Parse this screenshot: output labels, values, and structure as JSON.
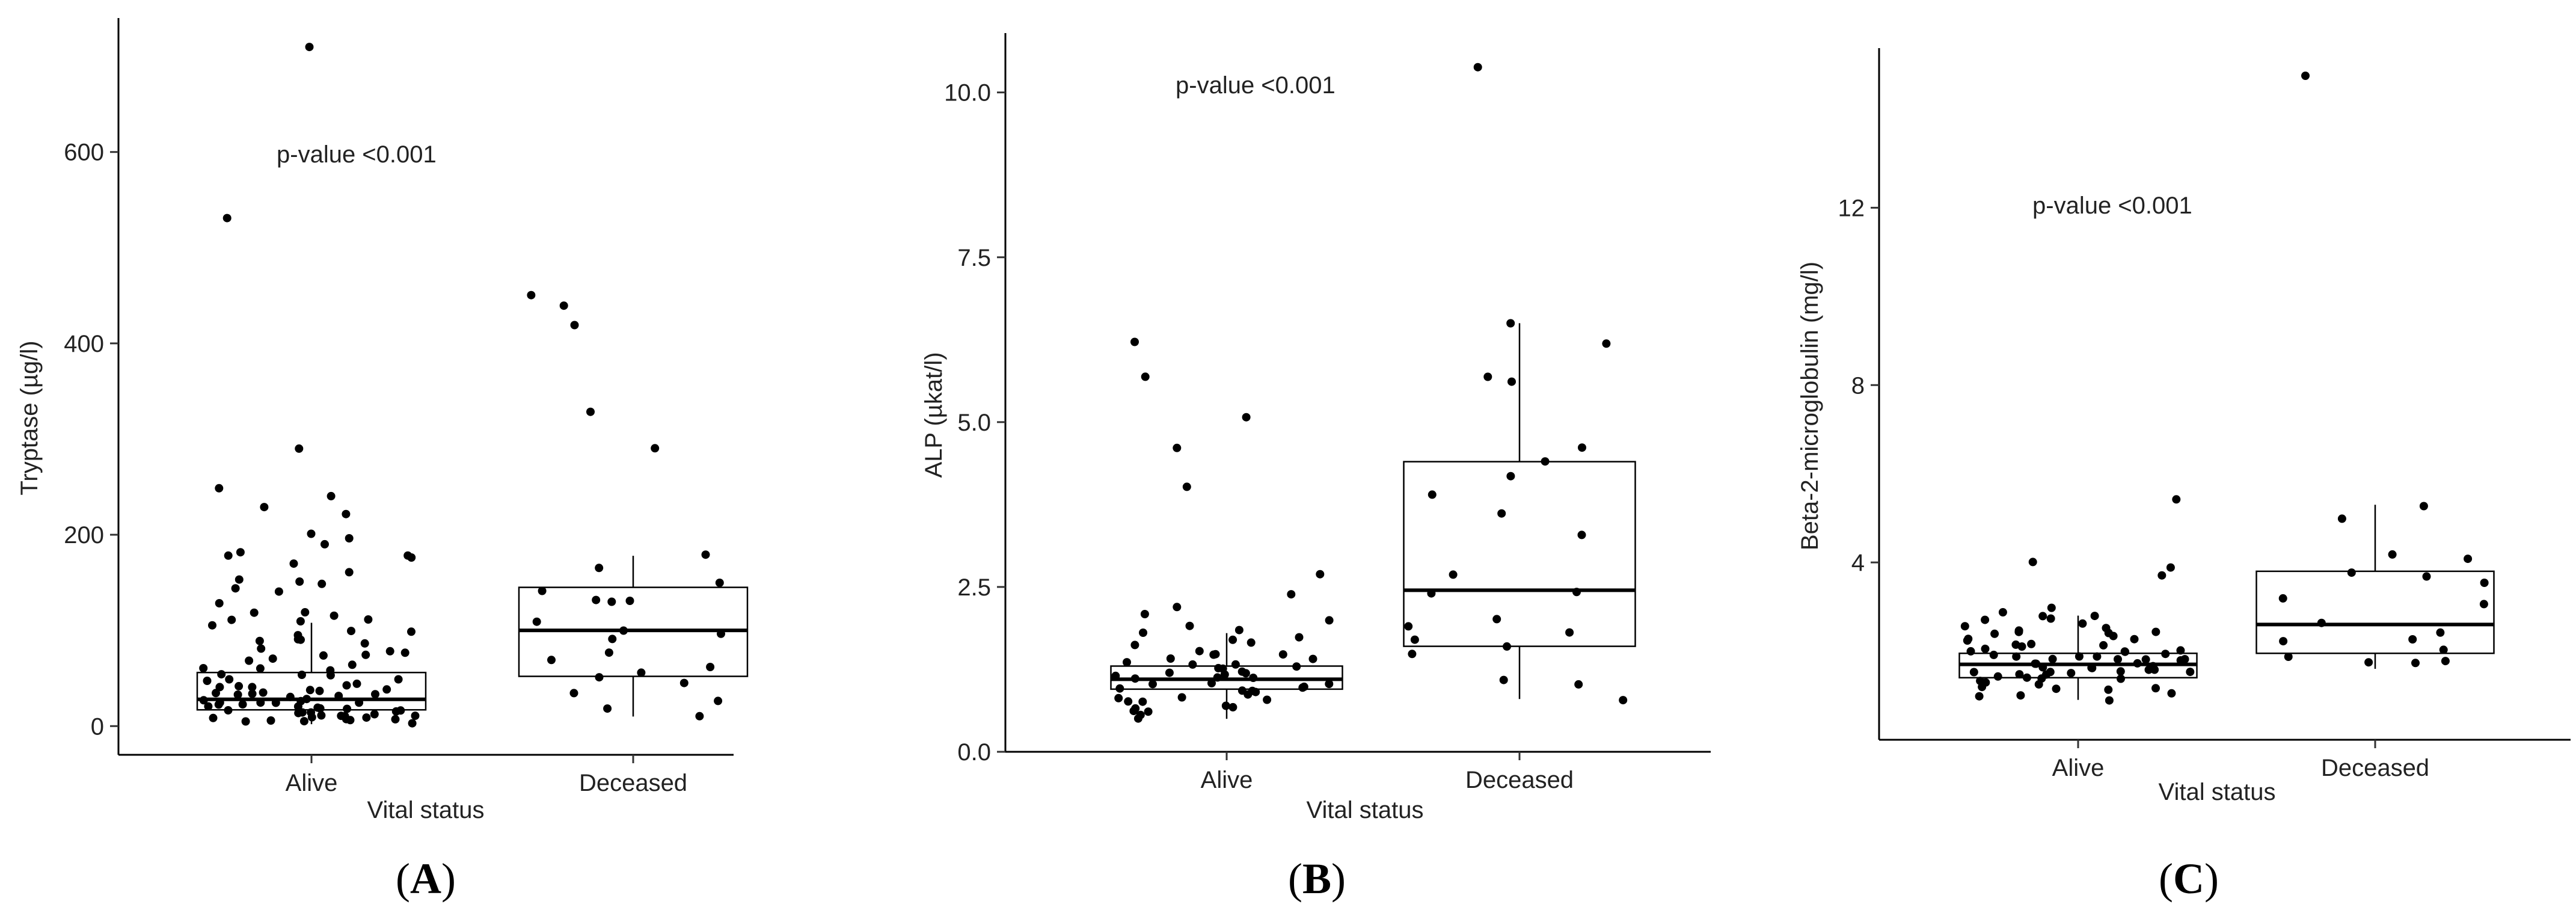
{
  "chart_data": [
    {
      "type": "box",
      "panel_label": "A",
      "xlabel": "Vital status",
      "ylabel": "Tryptase (µg/l)",
      "annotation": "p-value <0.001",
      "ylim": [
        -30,
        740
      ],
      "yticks": [
        0,
        200,
        400,
        600
      ],
      "grid": false,
      "categories": [
        "Alive",
        "Deceased"
      ],
      "boxes": [
        {
          "category": "Alive",
          "whisker_low": 2,
          "q1": 17,
          "median": 28,
          "q3": 56,
          "whisker_high": 108
        },
        {
          "category": "Deceased",
          "whisker_low": 10,
          "q1": 52,
          "median": 100,
          "q3": 145,
          "whisker_high": 178
        }
      ],
      "points": [
        {
          "category": "Alive",
          "values": [
            710,
            530,
            290,
            250,
            240,
            230,
            220,
            200,
            195,
            190,
            180,
            180,
            178,
            175,
            170,
            160,
            155,
            150,
            148,
            145,
            140,
            130,
            120,
            118,
            115,
            112,
            110,
            108,
            105,
            100,
            98,
            95,
            92,
            90,
            88,
            85,
            82,
            80,
            78,
            75,
            72,
            70,
            68,
            65,
            62,
            60,
            58,
            56,
            55,
            53,
            50,
            48,
            46,
            45,
            44,
            42,
            40,
            39,
            38,
            37,
            36,
            35,
            34,
            33,
            32,
            31,
            30,
            29,
            28,
            28,
            27,
            26,
            25,
            24,
            24,
            23,
            22,
            21,
            20,
            20,
            19,
            18,
            18,
            17,
            16,
            15,
            15,
            14,
            13,
            12,
            12,
            11,
            10,
            10,
            9,
            8,
            8,
            7,
            6,
            5,
            5,
            4,
            3
          ]
        },
        {
          "category": "Deceased",
          "values": [
            450,
            440,
            420,
            330,
            290,
            178,
            165,
            150,
            140,
            130,
            130,
            130,
            110,
            100,
            95,
            90,
            75,
            70,
            60,
            55,
            50,
            45,
            35,
            28,
            20,
            10
          ]
        }
      ]
    },
    {
      "type": "box",
      "panel_label": "B",
      "xlabel": "Vital status",
      "ylabel": "ALP (µkat/l)",
      "annotation": "p-value <0.001",
      "ylim": [
        0,
        10.9
      ],
      "yticks": [
        0.0,
        2.5,
        5.0,
        7.5,
        10.0
      ],
      "ytick_labels": [
        "0.0",
        "2.5",
        "5.0",
        "7.5",
        "10.0"
      ],
      "grid": false,
      "categories": [
        "Alive",
        "Deceased"
      ],
      "boxes": [
        {
          "category": "Alive",
          "whisker_low": 0.5,
          "q1": 0.95,
          "median": 1.1,
          "q3": 1.3,
          "whisker_high": 1.8
        },
        {
          "category": "Deceased",
          "whisker_low": 0.8,
          "q1": 1.6,
          "median": 2.45,
          "q3": 4.4,
          "whisker_high": 6.5
        }
      ],
      "points": [
        {
          "category": "Alive",
          "values": [
            6.2,
            5.7,
            5.1,
            4.6,
            4.0,
            2.7,
            2.4,
            2.2,
            2.1,
            2.0,
            1.9,
            1.85,
            1.8,
            1.75,
            1.7,
            1.65,
            1.6,
            1.55,
            1.5,
            1.5,
            1.45,
            1.4,
            1.4,
            1.35,
            1.35,
            1.3,
            1.3,
            1.25,
            1.25,
            1.2,
            1.2,
            1.2,
            1.15,
            1.15,
            1.1,
            1.1,
            1.1,
            1.05,
            1.05,
            1.0,
            1.0,
            1.0,
            0.95,
            0.95,
            0.9,
            0.9,
            0.85,
            0.85,
            0.8,
            0.8,
            0.75,
            0.75,
            0.7,
            0.7,
            0.65,
            0.6,
            0.6,
            0.55,
            0.5
          ]
        },
        {
          "category": "Deceased",
          "values": [
            10.4,
            6.5,
            6.2,
            5.7,
            5.6,
            4.6,
            4.4,
            4.2,
            3.9,
            3.6,
            3.3,
            2.7,
            2.4,
            2.4,
            2.0,
            1.9,
            1.8,
            1.7,
            1.6,
            1.5,
            1.1,
            1.0,
            0.8
          ]
        }
      ]
    },
    {
      "type": "box",
      "panel_label": "C",
      "xlabel": "Vital status",
      "ylabel": "Beta-2-microglobulin (mg/l)",
      "annotation": "p-value <0.001",
      "ylim": [
        0,
        15.6
      ],
      "yticks": [
        4,
        8,
        12
      ],
      "grid": false,
      "categories": [
        "Alive",
        "Deceased"
      ],
      "boxes": [
        {
          "category": "Alive",
          "whisker_low": 0.9,
          "q1": 1.4,
          "median": 1.7,
          "q3": 1.95,
          "whisker_high": 2.8
        },
        {
          "category": "Deceased",
          "whisker_low": 1.6,
          "q1": 1.95,
          "median": 2.6,
          "q3": 3.8,
          "whisker_high": 5.3
        }
      ],
      "points": [
        {
          "category": "Alive",
          "values": [
            5.4,
            4.0,
            3.9,
            3.7,
            3.0,
            2.9,
            2.8,
            2.8,
            2.7,
            2.7,
            2.6,
            2.6,
            2.5,
            2.5,
            2.45,
            2.4,
            2.4,
            2.35,
            2.3,
            2.3,
            2.25,
            2.2,
            2.2,
            2.15,
            2.1,
            2.1,
            2.05,
            2.0,
            2.0,
            2.0,
            1.95,
            1.95,
            1.9,
            1.9,
            1.9,
            1.85,
            1.85,
            1.8,
            1.8,
            1.8,
            1.75,
            1.75,
            1.7,
            1.7,
            1.7,
            1.65,
            1.65,
            1.6,
            1.6,
            1.6,
            1.55,
            1.55,
            1.5,
            1.5,
            1.5,
            1.45,
            1.45,
            1.4,
            1.4,
            1.35,
            1.35,
            1.3,
            1.3,
            1.25,
            1.2,
            1.2,
            1.15,
            1.1,
            1.05,
            1.0,
            0.95,
            0.9
          ]
        },
        {
          "category": "Deceased",
          "values": [
            15.0,
            5.3,
            5.0,
            4.2,
            4.1,
            3.8,
            3.7,
            3.5,
            3.2,
            3.1,
            2.6,
            2.4,
            2.3,
            2.2,
            2.0,
            1.9,
            1.8,
            1.75,
            1.7
          ]
        }
      ]
    }
  ]
}
